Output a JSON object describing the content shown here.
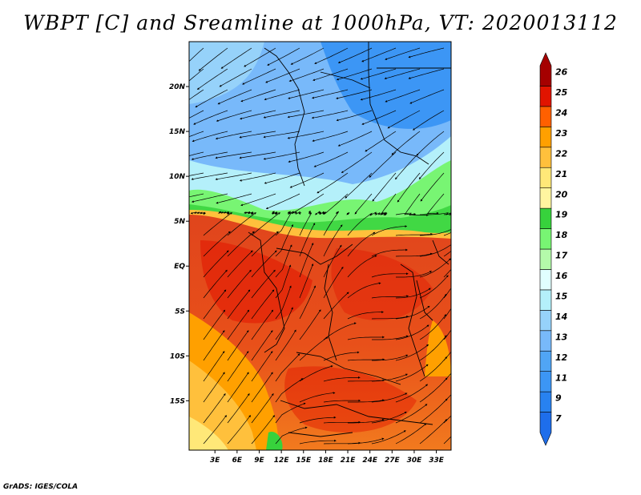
{
  "title": "WBPT [C] and Sreamline at 1000hPa, VT: 2020013112",
  "credit": "GrADS: IGES/COLA",
  "map": {
    "lat_range": [
      -20.5,
      25
    ],
    "lon_range": [
      -0.5,
      35
    ],
    "lat_ticks": [
      {
        "value": 20,
        "label": "20N"
      },
      {
        "value": 15,
        "label": "15N"
      },
      {
        "value": 10,
        "label": "10N"
      },
      {
        "value": 5,
        "label": "5N"
      },
      {
        "value": 0,
        "label": "EQ"
      },
      {
        "value": -5,
        "label": "5S"
      },
      {
        "value": -10,
        "label": "10S"
      },
      {
        "value": -15,
        "label": "15S"
      }
    ],
    "lon_ticks": [
      {
        "value": 3,
        "label": "3E"
      },
      {
        "value": 6,
        "label": "6E"
      },
      {
        "value": 9,
        "label": "9E"
      },
      {
        "value": 12,
        "label": "12E"
      },
      {
        "value": 15,
        "label": "15E"
      },
      {
        "value": 18,
        "label": "18E"
      },
      {
        "value": 21,
        "label": "21E"
      },
      {
        "value": 24,
        "label": "24E"
      },
      {
        "value": 27,
        "label": "27E"
      },
      {
        "value": 30,
        "label": "30E"
      },
      {
        "value": 33,
        "label": "33E"
      }
    ]
  },
  "colorbar": {
    "levels": [
      {
        "label": "7",
        "color": "#1e6eeb"
      },
      {
        "label": "9",
        "color": "#2882f0"
      },
      {
        "label": "11",
        "color": "#3c96f5"
      },
      {
        "label": "12",
        "color": "#50a5f5"
      },
      {
        "label": "13",
        "color": "#78b9fa"
      },
      {
        "label": "14",
        "color": "#96d2fa"
      },
      {
        "label": "15",
        "color": "#b4f0fa"
      },
      {
        "label": "16",
        "color": "#e1ffff"
      },
      {
        "label": "17",
        "color": "#b4faaa"
      },
      {
        "label": "18",
        "color": "#78f573"
      },
      {
        "label": "19",
        "color": "#37d23c"
      },
      {
        "label": "20",
        "color": "#fff5a0"
      },
      {
        "label": "21",
        "color": "#ffe878"
      },
      {
        "label": "22",
        "color": "#ffc03c"
      },
      {
        "label": "23",
        "color": "#ffa000"
      },
      {
        "label": "24",
        "color": "#ff6000"
      },
      {
        "label": "25",
        "color": "#e11400"
      },
      {
        "label": "26",
        "color": "#a50000"
      }
    ]
  }
}
